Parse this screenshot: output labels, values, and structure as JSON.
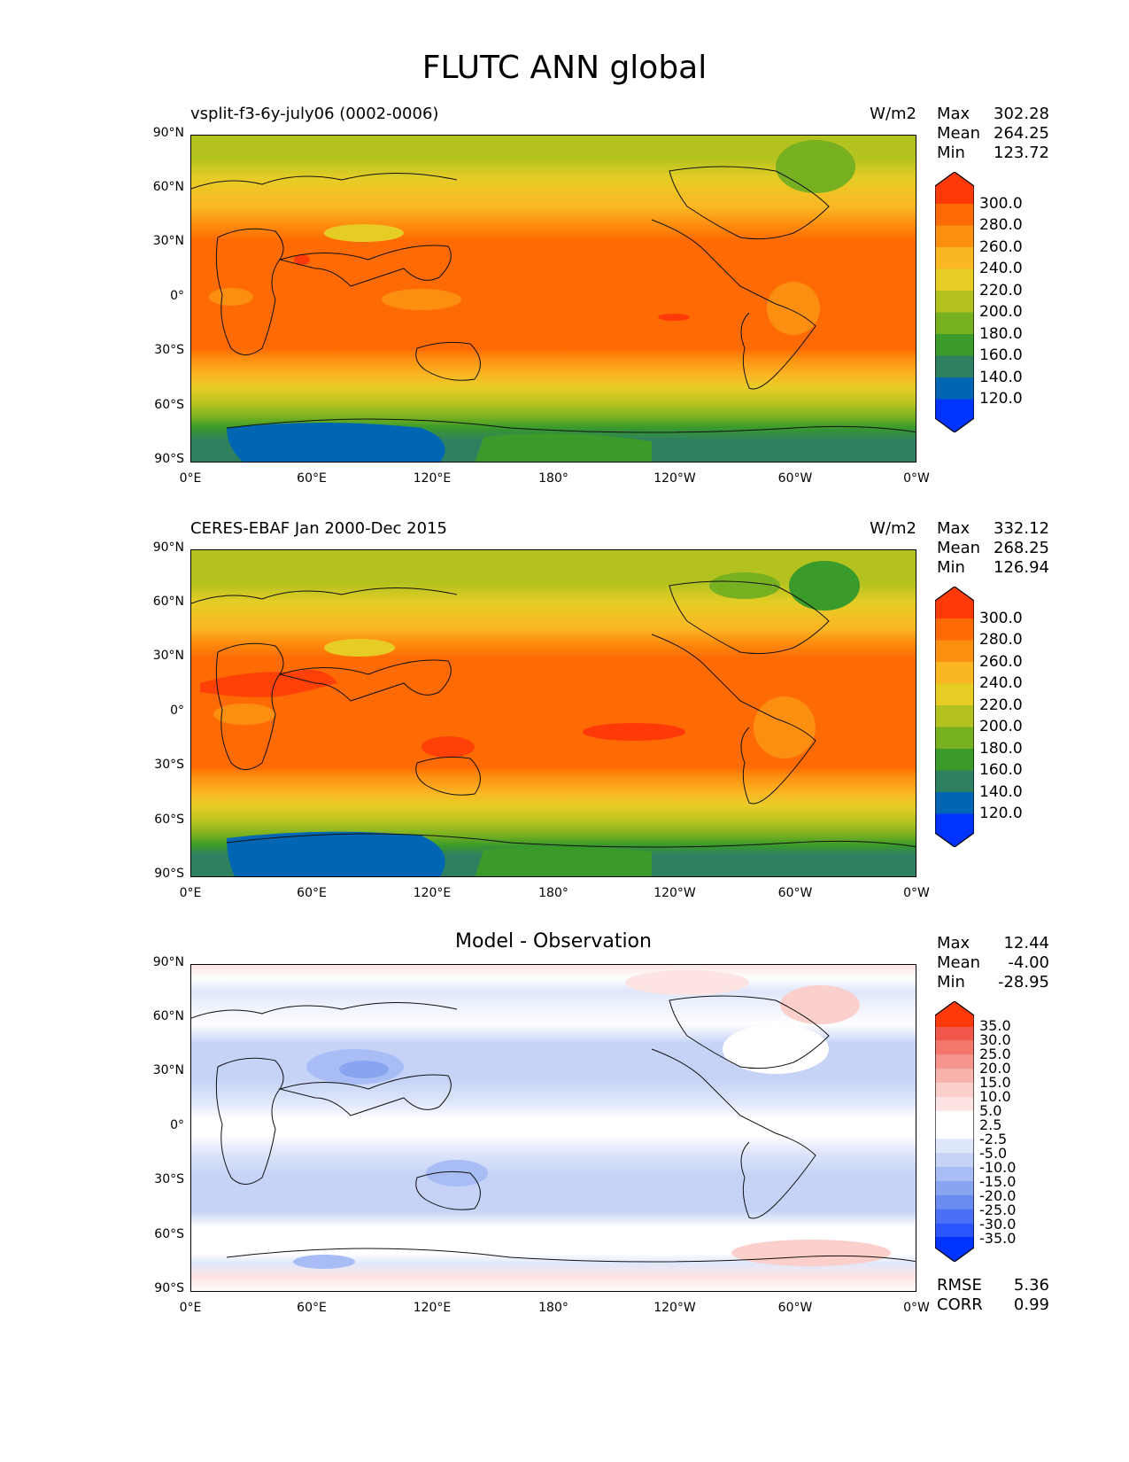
{
  "title": "FLUTC ANN global",
  "lat_ticks": [
    "90°N",
    "60°N",
    "30°N",
    "0°",
    "30°S",
    "60°S",
    "90°S"
  ],
  "lon_ticks": [
    "0°E",
    "60°E",
    "120°E",
    "180°",
    "120°W",
    "60°W",
    "0°W"
  ],
  "colors": {
    "abs_levels": [
      "#0033ff",
      "#0066b3",
      "#2e8060",
      "#3a9a2a",
      "#77b020",
      "#b4c21f",
      "#e6cd26",
      "#fbb623",
      "#fd8f10",
      "#fe6a03",
      "#ff3a08"
    ],
    "diff_levels": [
      "#0033ff",
      "#2b55ff",
      "#4b70f5",
      "#6b8bf0",
      "#8aa5f0",
      "#a8bdf5",
      "#c6d3f7",
      "#dfe7fb",
      "#ffffff",
      "#fde4e2",
      "#fbcfcb",
      "#f8b3ad",
      "#f6958d",
      "#f4776d",
      "#f2574c",
      "#ff3a08"
    ]
  },
  "panels": [
    {
      "left_label": "vsplit-f3-6y-july06 (0002-0006)",
      "right_label": "W/m2",
      "stats": [
        {
          "name": "Max",
          "value": "302.28"
        },
        {
          "name": "Mean",
          "value": "264.25"
        },
        {
          "name": "Min",
          "value": "123.72"
        }
      ],
      "colorbar_ticks": [
        "300.0",
        "280.0",
        "260.0",
        "240.0",
        "220.0",
        "200.0",
        "180.0",
        "160.0",
        "140.0",
        "120.0"
      ]
    },
    {
      "left_label": "CERES-EBAF Jan 2000-Dec 2015",
      "right_label": "W/m2",
      "stats": [
        {
          "name": "Max",
          "value": "332.12"
        },
        {
          "name": "Mean",
          "value": "268.25"
        },
        {
          "name": "Min",
          "value": "126.94"
        }
      ],
      "colorbar_ticks": [
        "300.0",
        "280.0",
        "260.0",
        "240.0",
        "220.0",
        "200.0",
        "180.0",
        "160.0",
        "140.0",
        "120.0"
      ]
    },
    {
      "center_label": "Model - Observation",
      "stats": [
        {
          "name": "Max",
          "value": "12.44"
        },
        {
          "name": "Mean",
          "value": "-4.00"
        },
        {
          "name": "Min",
          "value": "-28.95"
        }
      ],
      "colorbar_ticks": [
        "35.0",
        "30.0",
        "25.0",
        "20.0",
        "15.0",
        "10.0",
        "5.0",
        "2.5",
        "-2.5",
        "-5.0",
        "-10.0",
        "-15.0",
        "-20.0",
        "-25.0",
        "-30.0",
        "-35.0"
      ],
      "metrics": [
        {
          "name": "RMSE",
          "value": "5.36"
        },
        {
          "name": "CORR",
          "value": "0.99"
        }
      ]
    }
  ]
}
